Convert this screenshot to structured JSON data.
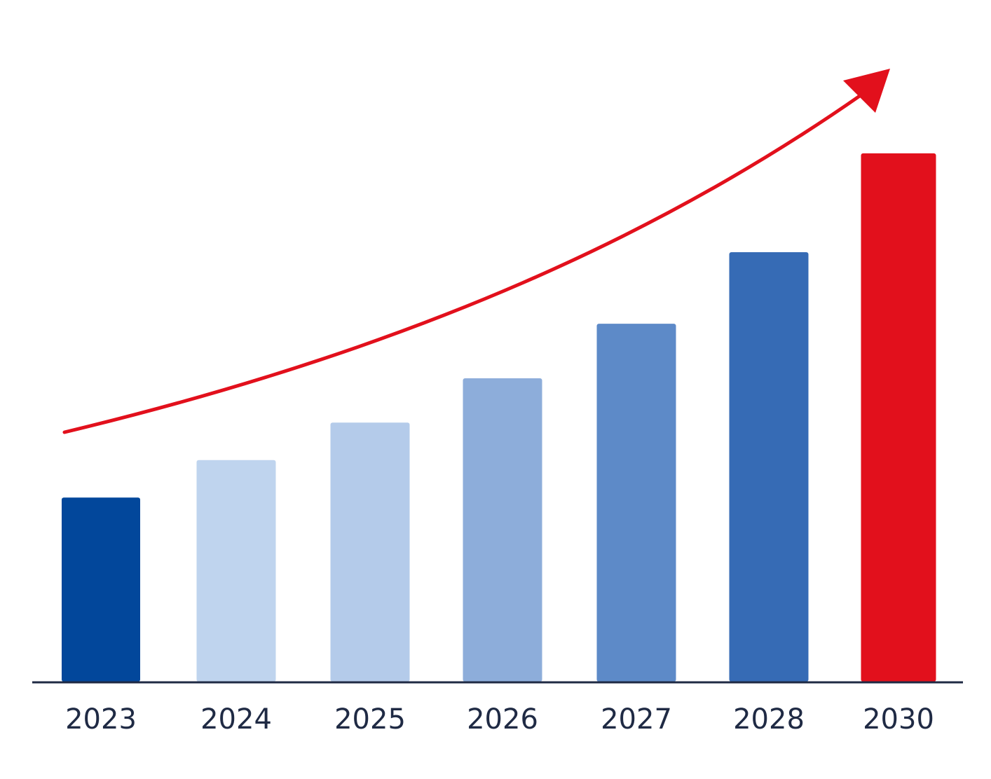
{
  "chart_data": {
    "type": "bar",
    "title": "",
    "xlabel": "",
    "ylabel": "",
    "categories": [
      "2023",
      "2024",
      "2025",
      "2026",
      "2027",
      "2028",
      "2030"
    ],
    "values": [
      27,
      32.5,
      38,
      44.5,
      52.5,
      63,
      77.5
    ],
    "ylim": [
      0,
      100
    ],
    "grid": false,
    "legend": "none",
    "bar_colors": [
      "#02479b",
      "#bfd4ee",
      "#b4cbea",
      "#8dadda",
      "#5d8ac8",
      "#366bb5",
      "#e2101c"
    ],
    "trend_arrow": {
      "direction": "up",
      "color": "#e2101c"
    },
    "axis_color": "#1f2a44",
    "label_color": "#1f2a44"
  }
}
